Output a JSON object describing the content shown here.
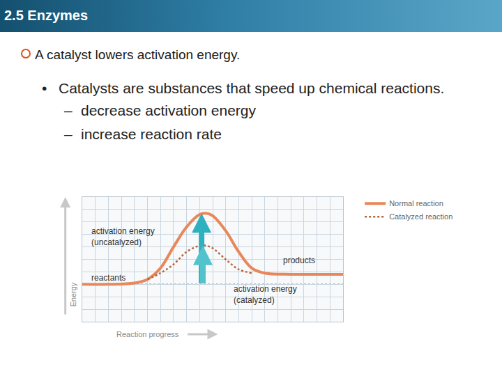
{
  "header": "2.5 Enzymes",
  "heading": "A catalyst lowers activation energy.",
  "bullets": [
    {
      "text": "Catalysts are substances that speed up chemical reactions.",
      "subitems": [
        "decrease activation energy",
        "increase reaction rate"
      ]
    }
  ],
  "chart_data": {
    "type": "line",
    "x_label": "Reaction progress",
    "y_label": "Energy",
    "x": [
      0,
      2,
      4,
      5,
      6,
      7,
      8,
      9,
      9.5,
      10,
      11,
      12,
      13,
      14,
      16,
      18,
      20
    ],
    "series": [
      {
        "name": "Normal reaction",
        "color": "#e8875a",
        "line_style": "solid",
        "values": [
          3.0,
          3.0,
          3.1,
          3.4,
          4.3,
          6.0,
          7.6,
          8.6,
          8.7,
          8.5,
          7.3,
          5.6,
          4.3,
          3.9,
          3.8,
          3.8,
          3.8
        ]
      },
      {
        "name": "Catalyzed reaction",
        "color": "#b5643c",
        "line_style": "dotted",
        "values": [
          null,
          null,
          null,
          3.4,
          3.9,
          4.6,
          5.6,
          6.1,
          6.1,
          5.9,
          5.0,
          4.2,
          3.9,
          null,
          null,
          null,
          null
        ]
      }
    ],
    "xlim": [
      0,
      20
    ],
    "ylim": [
      0,
      10
    ],
    "xticks": [
      0,
      1,
      2,
      3,
      4,
      5,
      6,
      7,
      8,
      9,
      10,
      11,
      12,
      13,
      14,
      15,
      16,
      17,
      18,
      19,
      20
    ],
    "yticks": [
      0,
      1,
      2,
      3,
      4,
      5,
      6,
      7,
      8,
      9,
      10
    ],
    "grid": true,
    "tick_labels": false,
    "legend": "right",
    "annotations": [
      {
        "text": "activation energy\n(uncatalyzed)",
        "x": 0.6,
        "y": 6.8
      },
      {
        "text": "reactants",
        "x": 0.6,
        "y": 3.5
      },
      {
        "text": "products",
        "x": 15.3,
        "y": 4.9
      },
      {
        "text": "activation energy\n(catalyzed)",
        "x": 11.5,
        "y": 2.2
      }
    ]
  }
}
